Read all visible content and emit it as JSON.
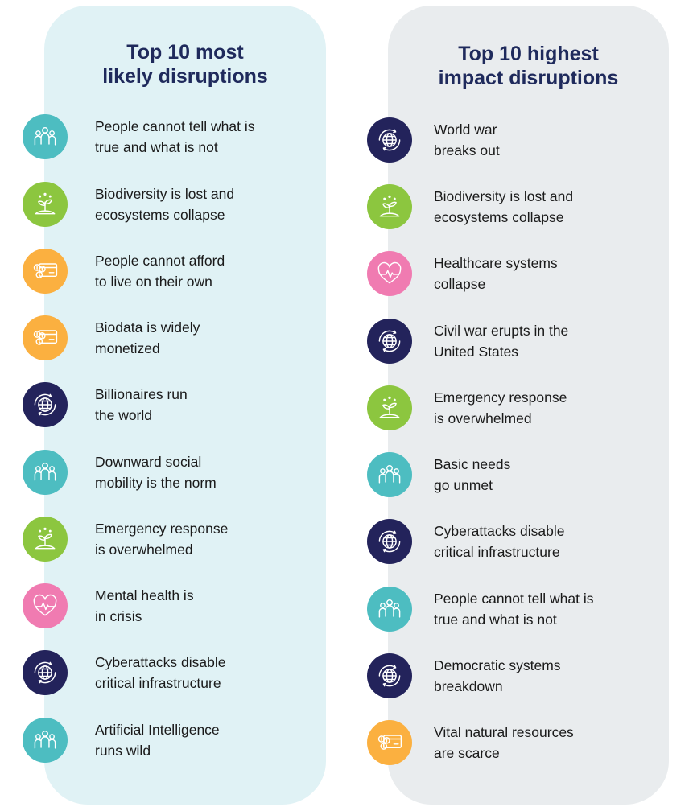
{
  "colors": {
    "people-icon": "#4dbdc1",
    "plant-icon": "#8cc63f",
    "money-icon": "#fbb040",
    "globe-icon": "#23235b",
    "heart-icon": "#f07bb1"
  },
  "left": {
    "title_line1": "Top 10 most",
    "title_line2": "likely disruptions",
    "items": [
      {
        "text": "People cannot tell what is\ntrue and what is not",
        "icon": "people-icon"
      },
      {
        "text": "Biodiversity is lost and\necosystems collapse",
        "icon": "plant-icon"
      },
      {
        "text": "People cannot afford\nto live on their own",
        "icon": "money-icon"
      },
      {
        "text": "Biodata is widely\nmonetized",
        "icon": "money-icon"
      },
      {
        "text": "Billionaires run\nthe world",
        "icon": "globe-icon"
      },
      {
        "text": "Downward social\nmobility is the norm",
        "icon": "people-icon"
      },
      {
        "text": "Emergency response\nis overwhelmed",
        "icon": "plant-icon"
      },
      {
        "text": "Mental health is\nin crisis",
        "icon": "heart-icon"
      },
      {
        "text": "Cyberattacks disable\ncritical infrastructure",
        "icon": "globe-icon"
      },
      {
        "text": "Artificial Intelligence\nruns wild",
        "icon": "people-icon"
      }
    ]
  },
  "right": {
    "title_line1": "Top 10 highest",
    "title_line2": "impact disruptions",
    "items": [
      {
        "text": "World war\nbreaks out",
        "icon": "globe-icon"
      },
      {
        "text": "Biodiversity is lost and\necosystems collapse",
        "icon": "plant-icon"
      },
      {
        "text": "Healthcare systems\ncollapse",
        "icon": "heart-icon"
      },
      {
        "text": "Civil war erupts in the\nUnited States",
        "icon": "globe-icon"
      },
      {
        "text": "Emergency response\nis overwhelmed",
        "icon": "plant-icon"
      },
      {
        "text": "Basic needs\ngo unmet",
        "icon": "people-icon"
      },
      {
        "text": "Cyberattacks disable\ncritical infrastructure",
        "icon": "globe-icon"
      },
      {
        "text": "People cannot tell what is\ntrue and what is not",
        "icon": "people-icon"
      },
      {
        "text": "Democratic systems\nbreakdown",
        "icon": "globe-icon"
      },
      {
        "text": "Vital natural resources\nare scarce",
        "icon": "money-icon"
      }
    ]
  }
}
